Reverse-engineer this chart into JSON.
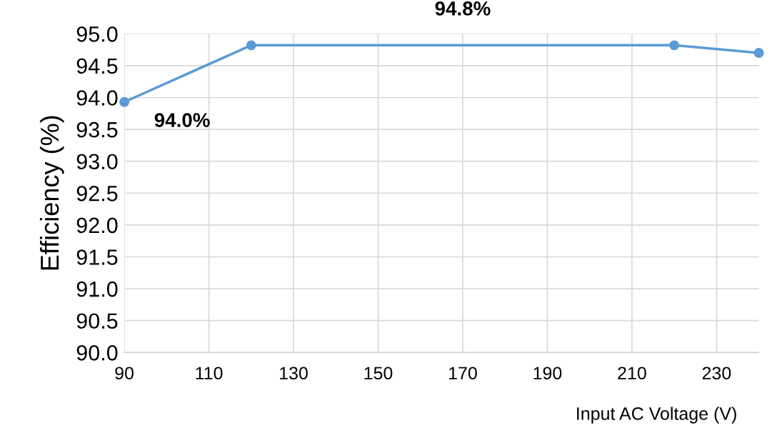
{
  "chart_data": {
    "type": "line",
    "xlabel": "Input AC Voltage (V)",
    "ylabel": "Efficiency (%)",
    "x": [
      90,
      120,
      220,
      240
    ],
    "series": [
      {
        "color": "#5b9bd5",
        "values": [
          93.93,
          94.82,
          94.82,
          94.7
        ]
      }
    ],
    "xlim": [
      90,
      240
    ],
    "xticks": [
      90,
      110,
      130,
      150,
      170,
      190,
      210,
      230
    ],
    "ylim": [
      90.0,
      95.0
    ],
    "yticks": [
      {
        "value": 90,
        "label": "90.0"
      },
      {
        "value": 90.5,
        "label": "90.5"
      },
      {
        "value": 91,
        "label": "91.0"
      },
      {
        "value": 91.5,
        "label": "91.5"
      },
      {
        "value": 92,
        "label": "92.0"
      },
      {
        "value": 92.5,
        "label": "92.5"
      },
      {
        "value": 93,
        "label": "93.0"
      },
      {
        "value": 93.5,
        "label": "93.5"
      },
      {
        "value": 94,
        "label": "94.0"
      },
      {
        "value": 94.5,
        "label": "94.5"
      },
      {
        "value": 95,
        "label": "95.0"
      }
    ],
    "grid": true,
    "marker": "circle",
    "line_style": "solid",
    "legend": false,
    "annotations": [
      {
        "text": "94.0%",
        "x": 90,
        "y": 93.93
      },
      {
        "text": "94.8%",
        "x": 170,
        "y": 94.82
      }
    ]
  }
}
